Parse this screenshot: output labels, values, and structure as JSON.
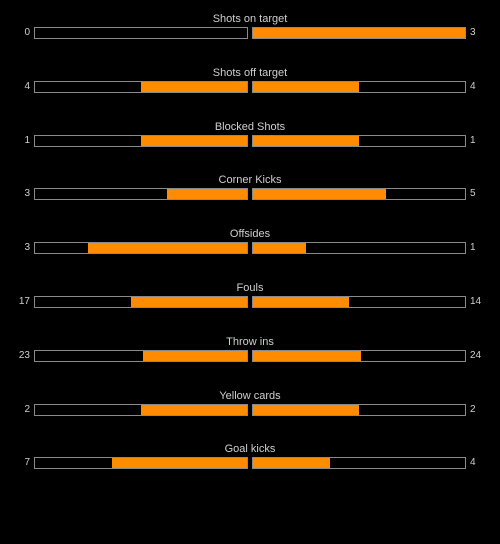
{
  "colors": {
    "background": "#000000",
    "bar_fill": "#ff8c00",
    "bar_border": "#8a8a8a",
    "text": "#cfcfcf"
  },
  "stats": [
    {
      "label": "Shots on target",
      "home": "0",
      "away": "3",
      "home_fraction": 0.0,
      "away_fraction": 1.0
    },
    {
      "label": "Shots off target",
      "home": "4",
      "away": "4",
      "home_fraction": 0.5,
      "away_fraction": 0.5
    },
    {
      "label": "Blocked Shots",
      "home": "1",
      "away": "1",
      "home_fraction": 0.5,
      "away_fraction": 0.5
    },
    {
      "label": "Corner Kicks",
      "home": "3",
      "away": "5",
      "home_fraction": 0.375,
      "away_fraction": 0.625
    },
    {
      "label": "Offsides",
      "home": "3",
      "away": "1",
      "home_fraction": 0.75,
      "away_fraction": 0.25
    },
    {
      "label": "Fouls",
      "home": "17",
      "away": "14",
      "home_fraction": 0.548,
      "away_fraction": 0.452
    },
    {
      "label": "Throw ins",
      "home": "23",
      "away": "24",
      "home_fraction": 0.489,
      "away_fraction": 0.511
    },
    {
      "label": "Yellow cards",
      "home": "2",
      "away": "2",
      "home_fraction": 0.5,
      "away_fraction": 0.5
    },
    {
      "label": "Goal kicks",
      "home": "7",
      "away": "4",
      "home_fraction": 0.636,
      "away_fraction": 0.364
    }
  ]
}
